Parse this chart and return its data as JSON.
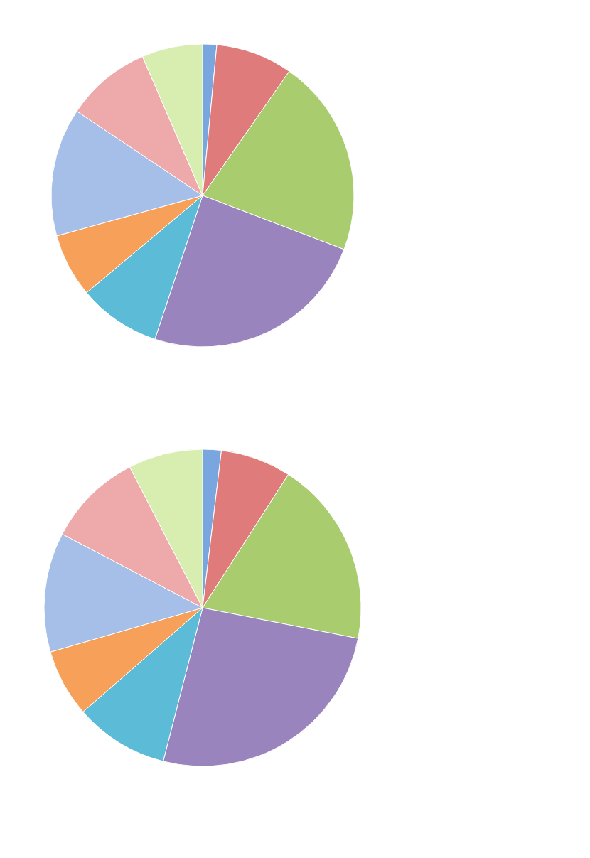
{
  "chart_data": [
    {
      "type": "pie",
      "categories": [
        null,
        null,
        null,
        null,
        null,
        null,
        null,
        null,
        null
      ],
      "values": [
        1.5,
        8.2,
        21.1,
        24.3,
        8.8,
        6.8,
        13.7,
        9.1,
        6.5
      ],
      "colors": [
        "#7aa6e0",
        "#e07b7b",
        "#a8cc6e",
        "#9a84bd",
        "#5cbcd8",
        "#f7a05a",
        "#a5bfe8",
        "#eeaaaa",
        "#d8edb0"
      ]
    },
    {
      "type": "pie",
      "categories": [
        null,
        null,
        null,
        null,
        null,
        null,
        null,
        null,
        null
      ],
      "values": [
        1.9,
        7.2,
        19.0,
        25.9,
        9.6,
        6.9,
        12.2,
        9.7,
        7.6
      ],
      "colors": [
        "#7aa6e0",
        "#e07b7b",
        "#a8cc6e",
        "#9a84bd",
        "#5cbcd8",
        "#f7a05a",
        "#a5bfe8",
        "#eeaaaa",
        "#d8edb0"
      ]
    }
  ]
}
